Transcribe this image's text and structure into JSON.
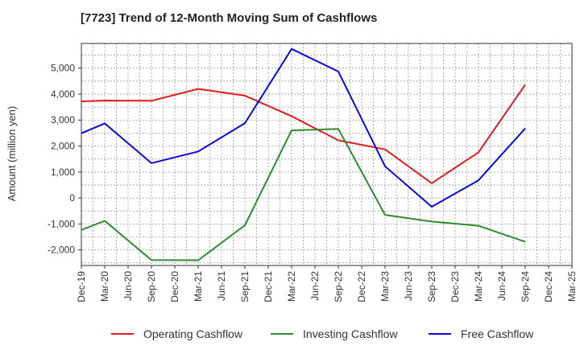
{
  "chart_data": {
    "type": "line",
    "title": "[7723]  Trend of 12-Month Moving Sum of Cashflows",
    "xlabel": "",
    "ylabel": "Amount (million yen)",
    "categories": [
      "Dec-19",
      "Mar-20",
      "Jun-20",
      "Sep-20",
      "Dec-20",
      "Mar-21",
      "Jun-21",
      "Sep-21",
      "Dec-21",
      "Mar-22",
      "Jun-22",
      "Sep-22",
      "Dec-22",
      "Mar-23",
      "Jun-23",
      "Sep-23",
      "Dec-23",
      "Mar-24",
      "Jun-24",
      "Sep-24",
      "Dec-24",
      "Mar-25"
    ],
    "ylim": [
      -2600,
      5950
    ],
    "yticks": [
      -2000,
      -1000,
      0,
      1000,
      2000,
      3000,
      4000,
      5000
    ],
    "ytick_labels": [
      "-2,000",
      "-1,000",
      "0",
      "1,000",
      "2,000",
      "3,000",
      "4,000",
      "5,000"
    ],
    "grid": true,
    "legend_position": "bottom",
    "series": [
      {
        "name": "Operating Cashflow",
        "color": "#e31a1c",
        "values": [
          3720,
          3750,
          null,
          3740,
          null,
          4200,
          null,
          3940,
          null,
          3150,
          null,
          2220,
          null,
          1870,
          null,
          570,
          null,
          1760,
          null,
          4360,
          null,
          null
        ]
      },
      {
        "name": "Investing Cashflow",
        "color": "#2e8b2e",
        "values": [
          -1230,
          -880,
          null,
          -2390,
          null,
          -2400,
          null,
          -1050,
          null,
          2600,
          null,
          2660,
          null,
          -650,
          null,
          -910,
          null,
          -1070,
          null,
          -1690,
          null,
          null
        ]
      },
      {
        "name": "Free Cashflow",
        "color": "#0a0ad8",
        "values": [
          2490,
          2870,
          null,
          1340,
          null,
          1790,
          null,
          2880,
          null,
          5740,
          null,
          4870,
          null,
          1220,
          null,
          -340,
          null,
          680,
          null,
          2680,
          null,
          null
        ]
      }
    ]
  }
}
